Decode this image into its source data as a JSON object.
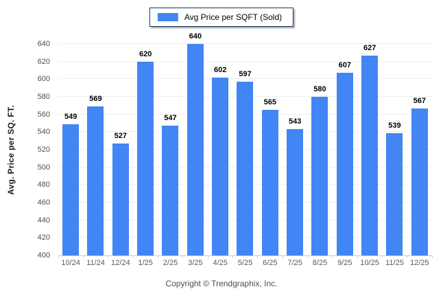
{
  "legend": {
    "label": "Avg Price per SQFT (Sold)",
    "swatch_color": "#4285f4"
  },
  "footer": {
    "copyright": "Copyright © Trendgraphix, Inc."
  },
  "chart_data": {
    "type": "bar",
    "title": "",
    "series_name": "Avg Price per SQFT (Sold)",
    "categories": [
      "10/24",
      "11/24",
      "12/24",
      "1/25",
      "2/25",
      "3/25",
      "4/25",
      "5/25",
      "6/25",
      "7/25",
      "8/25",
      "9/25",
      "10/25",
      "11/25",
      "12/25"
    ],
    "values": [
      549,
      569,
      527,
      620,
      547,
      640,
      602,
      597,
      565,
      543,
      580,
      607,
      627,
      539,
      567
    ],
    "xlabel": "",
    "ylabel": "Avg. Price per SQ. FT.",
    "ylim": [
      400,
      640
    ],
    "ytick_step": 20,
    "grid": "horizontal",
    "legend_position": "top-center",
    "bar_color": "#4285f4",
    "value_labels": "above-bars"
  }
}
